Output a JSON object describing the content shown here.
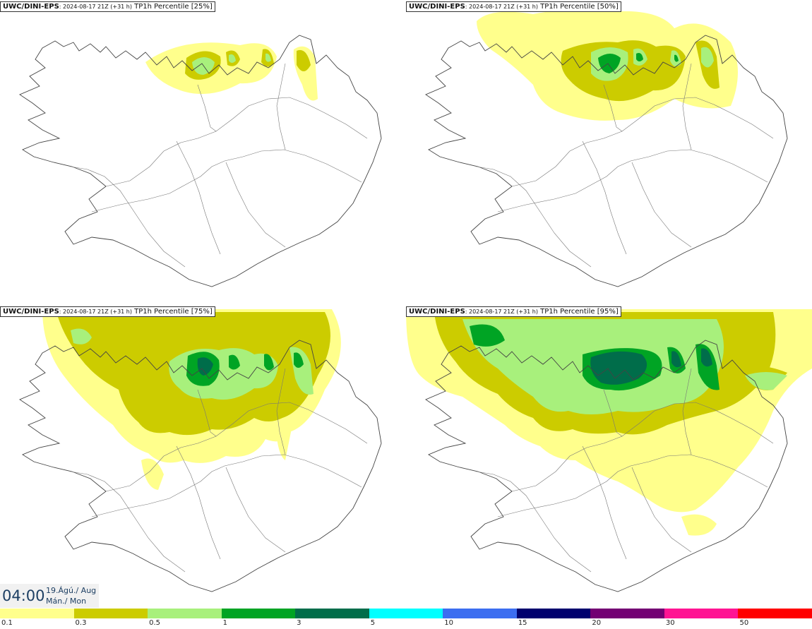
{
  "panels": [
    {
      "model": "UWC/DINI-EPS",
      "run": ": 2024-08-17 21Z (+31 h)",
      "field": " TP1h Percentile [25%]",
      "percentile": 25
    },
    {
      "model": "UWC/DINI-EPS",
      "run": ": 2024-08-17 21Z (+31 h)",
      "field": " TP1h Percentile [50%]",
      "percentile": 50
    },
    {
      "model": "UWC/DINI-EPS",
      "run": ": 2024-08-17 21Z (+31 h)",
      "field": " TP1h Percentile [75%]",
      "percentile": 75
    },
    {
      "model": "UWC/DINI-EPS",
      "run": ": 2024-08-17 21Z (+31 h)",
      "field": " TP1h Percentile [95%]",
      "percentile": 95
    }
  ],
  "valid_time": {
    "hour": "04:00",
    "date_line1": "19.Ágú./ Aug",
    "date_line2": "Mán./ Mon"
  },
  "legend": {
    "labels": [
      "0.1",
      "0.3",
      "0.5",
      "1",
      "3",
      "5",
      "10",
      "15",
      "20",
      "30",
      "50"
    ],
    "colors": [
      "#ffff8c",
      "#cccc00",
      "#a8f07c",
      "#00a424",
      "#006d4a",
      "#00ffff",
      "#3c6ef0",
      "#00006e",
      "#730073",
      "#ff1493",
      "#ff0000"
    ]
  },
  "colors": {
    "land_outline": "#444444",
    "roads": "#777777",
    "date_text": "#1d3f63"
  }
}
